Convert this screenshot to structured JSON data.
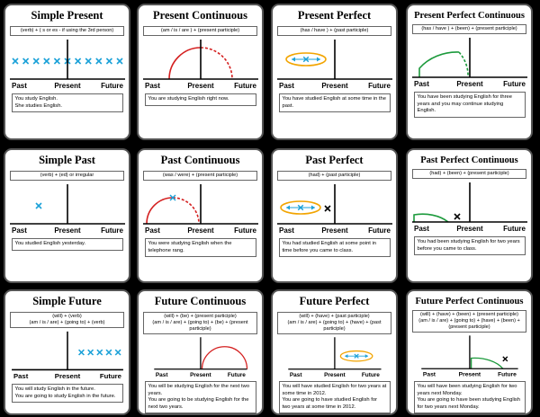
{
  "cards": [
    {
      "title": "Simple Present",
      "formula": [
        "(verb) + ( s or es - if using the 3rd person)"
      ],
      "axis": {
        "past": "Past",
        "present": "Present",
        "future": "Future"
      },
      "example": [
        "You study English.",
        "She studies English."
      ]
    },
    {
      "title": "Present Continuous",
      "formula": [
        "(am / is / are ) + (present participle)"
      ],
      "axis": {
        "past": "Past",
        "present": "Present",
        "future": "Future"
      },
      "example": [
        "You are studying English right now."
      ]
    },
    {
      "title": "Present Perfect",
      "formula": [
        "(has / have ) + (past participle)"
      ],
      "axis": {
        "past": "Past",
        "present": "Present",
        "future": "Future"
      },
      "example": [
        "You have studied English at some time in the past."
      ]
    },
    {
      "title": "Present Perfect Continuous",
      "formula": [
        "(has / have ) + (been) + (present participle)"
      ],
      "axis": {
        "past": "Past",
        "present": "Present",
        "future": "Future"
      },
      "example": [
        "You have been studying English for three years and you may continue studying English."
      ]
    },
    {
      "title": "Simple Past",
      "formula": [
        "(verb) + (ed) or irregular"
      ],
      "axis": {
        "past": "Past",
        "present": "Present",
        "future": "Future"
      },
      "example": [
        "You studied English yesterday."
      ]
    },
    {
      "title": "Past Continuous",
      "formula": [
        "(was / were) + (present participle)"
      ],
      "axis": {
        "past": "Past",
        "present": "Present",
        "future": "Future"
      },
      "example": [
        "You were studying English when the telephone rang."
      ]
    },
    {
      "title": "Past Perfect",
      "formula": [
        "(had) + (past participle)"
      ],
      "axis": {
        "past": "Past",
        "present": "Present",
        "future": "Future"
      },
      "example": [
        "You had studied English at some point in time before you came to class."
      ]
    },
    {
      "title": "Past Perfect Continuous",
      "formula": [
        "(had) + (been) + (present participle)"
      ],
      "axis": {
        "past": "Past",
        "present": "Present",
        "future": "Future"
      },
      "example": [
        "You had been studying English for two years before you came to class."
      ]
    },
    {
      "title": "Simple Future",
      "formula": [
        "(will) + (verb)",
        "(am / is / are) + (going to) + (verb)"
      ],
      "axis": {
        "past": "Past",
        "present": "Present",
        "future": "Future"
      },
      "example": [
        "You will study English in the future.",
        "You are going to study English in the future."
      ]
    },
    {
      "title": "Future Continuous",
      "formula": [
        "(will) + (be) + (present participle)",
        "(am / is / are) + (going to) + (be) + (present participle)"
      ],
      "axis": {
        "past": "Past",
        "present": "Present",
        "future": "Future"
      },
      "example": [
        "You will be studying English for the next two years.",
        "You are going to be studying English for the next two years."
      ]
    },
    {
      "title": "Future Perfect",
      "formula": [
        "(will) + (have) + (past participle)",
        "(am / is / are) + (going to) + (have) + (past participle)"
      ],
      "axis": {
        "past": "Past",
        "present": "Present",
        "future": "Future"
      },
      "example": [
        "You will have studied English for two years at some time in 2012.",
        "You are going to have studied English for two years at some time in 2012."
      ]
    },
    {
      "title": "Future Perfect Continuous",
      "formula": [
        "(will) + (have) + (been) + (present participle)",
        "(am / is / are) + (going to) + (have) + (been) + (present participle)"
      ],
      "axis": {
        "past": "Past",
        "present": "Present",
        "future": "Future"
      },
      "example": [
        "You will have been studying English for two years next Monday.",
        "You are going to have been studying English for two years next Monday."
      ]
    }
  ]
}
